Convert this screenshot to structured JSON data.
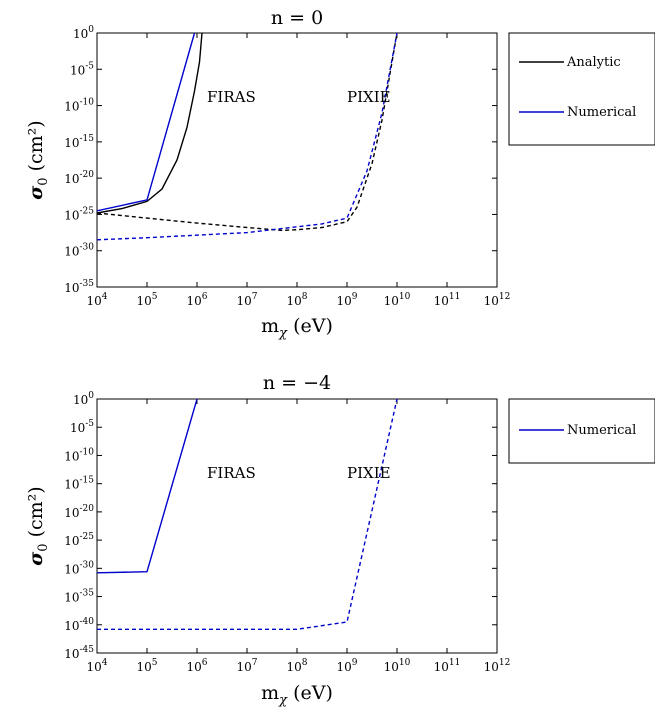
{
  "chart_data": [
    {
      "type": "line",
      "title": "n = 0",
      "xlabel": "m_χ (eV)",
      "ylabel": "σ_0 (cm²)",
      "x_scale": "log",
      "y_scale": "log",
      "xlim_exp": [
        4,
        12
      ],
      "ylim_exp": [
        -35,
        0
      ],
      "x_tick_labels": [
        "10^4",
        "10^5",
        "10^6",
        "10^7",
        "10^8",
        "10^9",
        "10^10",
        "10^11",
        "10^12"
      ],
      "y_tick_labels": [
        "10^-35",
        "10^-30",
        "10^-25",
        "10^-20",
        "10^-15",
        "10^-10",
        "10^-5",
        "10^0"
      ],
      "legend": {
        "placement": "outside-right-top",
        "entries": [
          {
            "label": "Analytic",
            "color": "#000000"
          },
          {
            "label": "Numerical",
            "color": "#0000cc"
          }
        ]
      },
      "annotations": [
        {
          "text": "FIRAS",
          "x_exp": 6.2,
          "y_exp": -9.5
        },
        {
          "text": "PIXIE",
          "x_exp": 9.0,
          "y_exp": -9.5
        }
      ],
      "series": [
        {
          "ref": "Analytic",
          "style": "solid",
          "color": "#000000",
          "points": [
            [
              4,
              -24.8
            ],
            [
              4.5,
              -24.2
            ],
            [
              5,
              -23.2
            ],
            [
              5.3,
              -21.5
            ],
            [
              5.6,
              -17.5
            ],
            [
              5.8,
              -13
            ],
            [
              5.95,
              -8
            ],
            [
              6.05,
              -4
            ],
            [
              6.1,
              0
            ]
          ]
        },
        {
          "ref": "Numerical",
          "style": "solid",
          "color": "#0000cc",
          "points": [
            [
              4,
              -24.5
            ],
            [
              5,
              -23
            ],
            [
              5.95,
              0
            ]
          ]
        },
        {
          "ref": "Analytic",
          "style": "dashed",
          "color": "#000000",
          "points": [
            [
              4,
              -24.8
            ],
            [
              5,
              -25.5
            ],
            [
              6,
              -26.2
            ],
            [
              7,
              -26.8
            ],
            [
              7.7,
              -27.2
            ],
            [
              8,
              -27.1
            ],
            [
              8.5,
              -26.8
            ],
            [
              9,
              -26
            ],
            [
              9.2,
              -24
            ],
            [
              9.5,
              -18
            ],
            [
              9.7,
              -12
            ],
            [
              9.9,
              -4
            ],
            [
              10,
              0
            ]
          ]
        },
        {
          "ref": "Numerical",
          "style": "dashed",
          "color": "#0000cc",
          "points": [
            [
              4,
              -28.5
            ],
            [
              5,
              -28.2
            ],
            [
              7,
              -27.5
            ],
            [
              8,
              -26.7
            ],
            [
              8.5,
              -26.3
            ],
            [
              9,
              -25.5
            ],
            [
              9.4,
              -19
            ],
            [
              9.7,
              -11
            ],
            [
              10,
              0
            ]
          ]
        }
      ]
    },
    {
      "type": "line",
      "title": "n = −4",
      "xlabel": "m_χ (eV)",
      "ylabel": "σ_0 (cm²)",
      "x_scale": "log",
      "y_scale": "log",
      "xlim_exp": [
        4,
        12
      ],
      "ylim_exp": [
        -45,
        0
      ],
      "x_tick_labels": [
        "10^4",
        "10^5",
        "10^6",
        "10^7",
        "10^8",
        "10^9",
        "10^10",
        "10^11",
        "10^12"
      ],
      "y_tick_labels": [
        "10^-45",
        "10^-40",
        "10^-35",
        "10^-30",
        "10^-25",
        "10^-20",
        "10^-15",
        "10^-10",
        "10^-5",
        "10^0"
      ],
      "legend": {
        "placement": "outside-right-top",
        "entries": [
          {
            "label": "Numerical",
            "color": "#0000cc"
          }
        ]
      },
      "annotations": [
        {
          "text": "FIRAS",
          "x_exp": 6.2,
          "y_exp": -14
        },
        {
          "text": "PIXIE",
          "x_exp": 9.0,
          "y_exp": -14
        }
      ],
      "series": [
        {
          "ref": "Numerical",
          "style": "solid",
          "color": "#0000cc",
          "points": [
            [
              4,
              -30.8
            ],
            [
              5,
              -30.6
            ],
            [
              6,
              0
            ]
          ]
        },
        {
          "ref": "Numerical",
          "style": "dashed",
          "color": "#0000cc",
          "points": [
            [
              4,
              -40.8
            ],
            [
              8,
              -40.8
            ],
            [
              9,
              -39.5
            ],
            [
              10,
              0
            ]
          ]
        }
      ]
    }
  ]
}
